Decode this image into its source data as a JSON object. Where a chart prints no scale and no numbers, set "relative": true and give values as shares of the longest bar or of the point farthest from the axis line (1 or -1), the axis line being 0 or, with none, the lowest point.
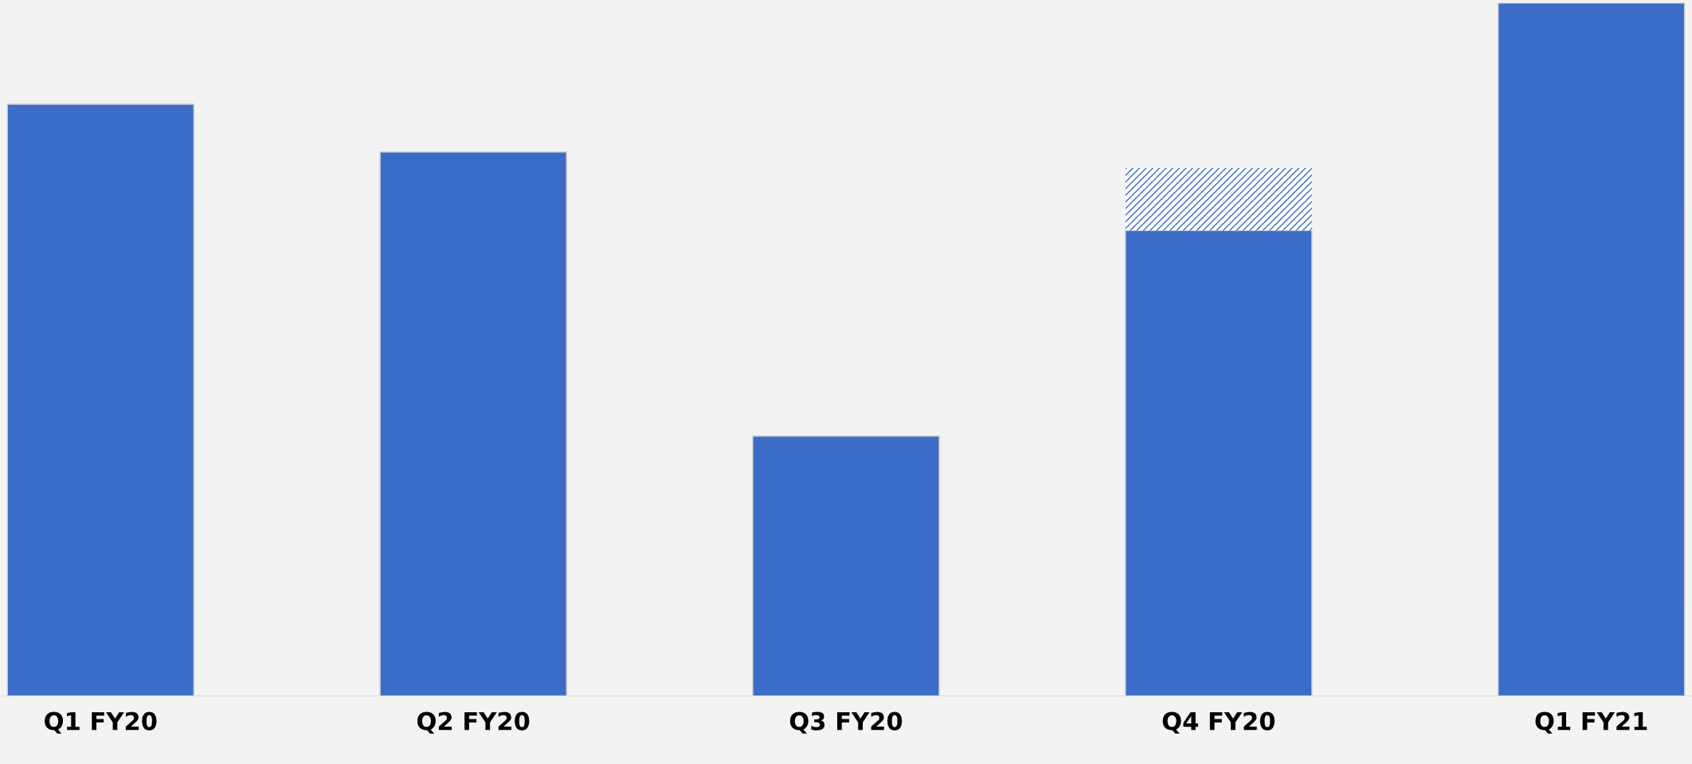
{
  "chart_data": {
    "type": "bar",
    "relative": true,
    "stacked": true,
    "categories": [
      "Q1 FY20",
      "Q2 FY20",
      "Q3 FY20",
      "Q4 FY20",
      "Q1 FY21"
    ],
    "series": [
      {
        "color": "#3a6cc8",
        "values": [
          0.854,
          0.785,
          0.375,
          0.672,
          1
        ]
      },
      {
        "color": "#3a6cc8",
        "values": [
          null,
          null,
          null,
          0.09,
          null
        ]
      }
    ],
    "grid": false,
    "legend": false
  }
}
